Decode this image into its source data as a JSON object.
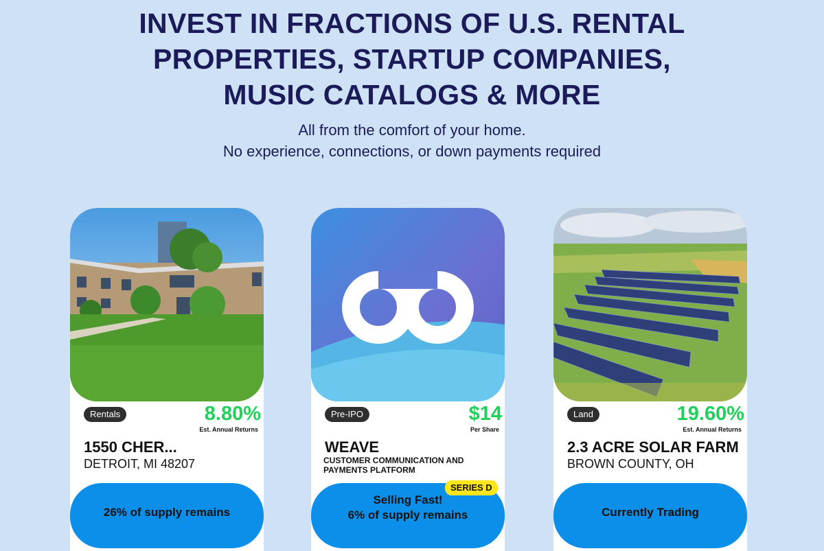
{
  "header": {
    "title": [
      "INVEST IN FRACTIONS OF U.S. RENTAL",
      "PROPERTIES, STARTUP COMPANIES,",
      "MUSIC CATALOGS & MORE"
    ],
    "subtitle": [
      "All from the comfort of your home.",
      "No experience, connections, or down payments required"
    ]
  },
  "cards": [
    {
      "tag": "Rentals",
      "metric": "8.80%",
      "metric_label": "Est. Annual Returns",
      "name": "1550 CHER...",
      "location": "DETROIT, MI 48207",
      "status": [
        "26% of supply remains"
      ]
    },
    {
      "tag": "Pre-IPO",
      "metric": "$14",
      "metric_label": "Per Share",
      "name": "WEAVE",
      "description": [
        "CUSTOMER COMMUNICATION AND",
        "PAYMENTS PLATFORM"
      ],
      "badge": "SERIES D",
      "status": [
        "Selling Fast!",
        "6% of supply remains"
      ]
    },
    {
      "tag": "Land",
      "metric": "19.60%",
      "metric_label": "Est. Annual Returns",
      "name": "2.3 ACRE SOLAR FARM",
      "location": "BROWN COUNTY, OH",
      "status": [
        "Currently Trading"
      ]
    }
  ]
}
